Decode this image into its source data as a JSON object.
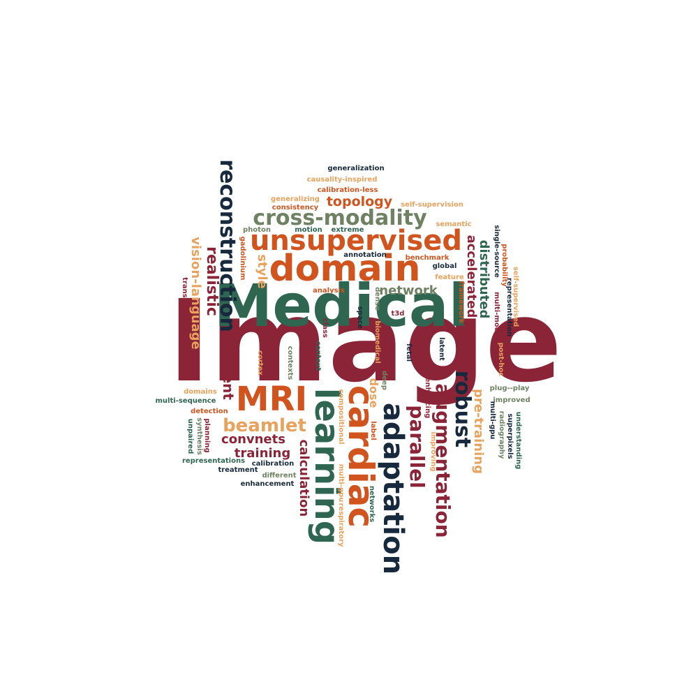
{
  "palette": {
    "crimson": "#8c2438",
    "teal": "#2e6652",
    "navy": "#17293d",
    "orange": "#d1541e",
    "sand": "#e8a25c",
    "sage": "#6e8262"
  },
  "words": [
    {
      "text": "Image",
      "color": "crimson"
    },
    {
      "text": "Medical",
      "color": "teal"
    },
    {
      "text": "domain",
      "color": "orange"
    },
    {
      "text": "unsupervised",
      "color": "orange"
    },
    {
      "text": "cross-modality",
      "color": "sage"
    },
    {
      "text": "topology",
      "color": "orange"
    },
    {
      "text": "reconstruction",
      "color": "navy"
    },
    {
      "text": "learning",
      "color": "teal"
    },
    {
      "text": "cardiac",
      "color": "orange"
    },
    {
      "text": "adaptation",
      "color": "navy"
    },
    {
      "text": "MRI",
      "color": "orange"
    },
    {
      "text": "beamlet",
      "color": "sand"
    },
    {
      "text": "augmentation",
      "color": "crimson"
    },
    {
      "text": "parallel",
      "color": "crimson"
    },
    {
      "text": "robust",
      "color": "navy"
    },
    {
      "text": "vision-language",
      "color": "sand"
    },
    {
      "text": "realistic",
      "color": "crimson"
    },
    {
      "text": "efficient",
      "color": "crimson"
    },
    {
      "text": "style",
      "color": "sand"
    },
    {
      "text": "network",
      "color": "sage"
    },
    {
      "text": "accelerated",
      "color": "crimson"
    },
    {
      "text": "distributed",
      "color": "teal"
    },
    {
      "text": "pre-training",
      "color": "sand"
    },
    {
      "text": "convnets",
      "color": "crimson"
    },
    {
      "text": "training",
      "color": "crimson"
    },
    {
      "text": "calculation",
      "color": "crimson"
    },
    {
      "text": "dose",
      "color": "sand"
    },
    {
      "text": "generalization",
      "color": "navy"
    },
    {
      "text": "causality-inspired",
      "color": "sand"
    },
    {
      "text": "calibration-less",
      "color": "orange"
    },
    {
      "text": "generalizing",
      "color": "sand"
    },
    {
      "text": "consistency",
      "color": "orange"
    },
    {
      "text": "self-supervision",
      "color": "sand"
    },
    {
      "text": "semantic",
      "color": "sand"
    },
    {
      "text": "photon",
      "color": "sage"
    },
    {
      "text": "motion",
      "color": "teal"
    },
    {
      "text": "extreme",
      "color": "teal"
    },
    {
      "text": "annotation",
      "color": "navy"
    },
    {
      "text": "benchmark",
      "color": "orange"
    },
    {
      "text": "global",
      "color": "navy"
    },
    {
      "text": "feature",
      "color": "sand"
    },
    {
      "text": "analysis",
      "color": "orange"
    },
    {
      "text": "gadolinium",
      "color": "orange"
    },
    {
      "text": "t3d",
      "color": "crimson"
    },
    {
      "text": "framework",
      "color": "orange"
    },
    {
      "text": "single-source",
      "color": "navy"
    },
    {
      "text": "multi-modal",
      "color": "crimson"
    },
    {
      "text": "probability",
      "color": "orange"
    },
    {
      "text": "representation",
      "color": "navy"
    },
    {
      "text": "self-supervised",
      "color": "sand"
    },
    {
      "text": "post-hoc",
      "color": "sand"
    },
    {
      "text": "transfer",
      "color": "crimson"
    },
    {
      "text": "segmentations",
      "color": "crimson"
    },
    {
      "text": "space",
      "color": "navy"
    },
    {
      "text": "dense",
      "color": "sage"
    },
    {
      "text": "biomedical",
      "color": "sand"
    },
    {
      "text": "class",
      "color": "crimson"
    },
    {
      "text": "contexts",
      "color": "sage"
    },
    {
      "text": "context",
      "color": "teal"
    },
    {
      "text": "cortex",
      "color": "sand"
    },
    {
      "text": "fetal",
      "color": "navy"
    },
    {
      "text": "latent",
      "color": "navy"
    },
    {
      "text": "deep",
      "color": "sage"
    },
    {
      "text": "domains",
      "color": "sand"
    },
    {
      "text": "multi-sequence",
      "color": "teal"
    },
    {
      "text": "detection",
      "color": "orange"
    },
    {
      "text": "plug--play",
      "color": "sage"
    },
    {
      "text": "improved",
      "color": "sage"
    },
    {
      "text": "enhancing",
      "color": "crimson"
    },
    {
      "text": "compositional",
      "color": "sand"
    },
    {
      "text": "label",
      "color": "orange"
    },
    {
      "text": "improving",
      "color": "sand"
    },
    {
      "text": "multi-gpu",
      "color": "navy"
    },
    {
      "text": "radiography",
      "color": "sage"
    },
    {
      "text": "superpixels",
      "color": "navy"
    },
    {
      "text": "understanding",
      "color": "teal"
    },
    {
      "text": "synthesis",
      "color": "sage"
    },
    {
      "text": "unpaired",
      "color": "teal"
    },
    {
      "text": "planning",
      "color": "crimson"
    },
    {
      "text": "representations",
      "color": "teal"
    },
    {
      "text": "calibration",
      "color": "navy"
    },
    {
      "text": "treatment",
      "color": "navy"
    },
    {
      "text": "different",
      "color": "sage"
    },
    {
      "text": "enhancement",
      "color": "navy"
    },
    {
      "text": "multi-gpu",
      "color": "sand"
    },
    {
      "text": "respiratory",
      "color": "sand"
    },
    {
      "text": "networks",
      "color": "teal"
    }
  ]
}
